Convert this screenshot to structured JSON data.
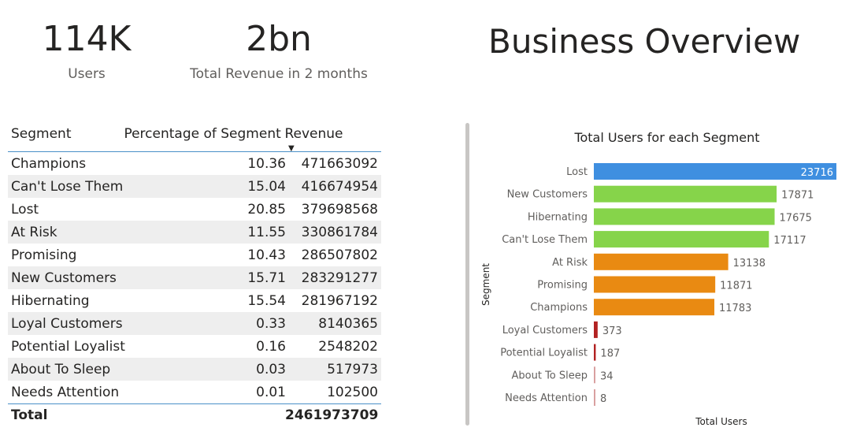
{
  "kpis": {
    "users": {
      "value": "114K",
      "label": "Users"
    },
    "revenue": {
      "value": "2bn",
      "label": "Total Revenue in 2 months"
    }
  },
  "title": "Business Overview",
  "table": {
    "headers": [
      "Segment",
      "Percentage of Segment",
      "Revenue"
    ],
    "sort_icon": "sort-descending-icon",
    "rows": [
      {
        "segment": "Champions",
        "pct": "10.36",
        "revenue": "471663092"
      },
      {
        "segment": "Can't Lose Them",
        "pct": "15.04",
        "revenue": "416674954"
      },
      {
        "segment": "Lost",
        "pct": "20.85",
        "revenue": "379698568"
      },
      {
        "segment": "At Risk",
        "pct": "11.55",
        "revenue": "330861784"
      },
      {
        "segment": "Promising",
        "pct": "10.43",
        "revenue": "286507802"
      },
      {
        "segment": "New Customers",
        "pct": "15.71",
        "revenue": "283291277"
      },
      {
        "segment": "Hibernating",
        "pct": "15.54",
        "revenue": "281967192"
      },
      {
        "segment": "Loyal Customers",
        "pct": "0.33",
        "revenue": "8140365"
      },
      {
        "segment": "Potential Loyalist",
        "pct": "0.16",
        "revenue": "2548202"
      },
      {
        "segment": "About To Sleep",
        "pct": "0.03",
        "revenue": "517973"
      },
      {
        "segment": "Needs Attention",
        "pct": "0.01",
        "revenue": "102500"
      }
    ],
    "total": {
      "label": "Total",
      "revenue": "2461973709"
    }
  },
  "chart_data": {
    "type": "bar",
    "orientation": "horizontal",
    "title": "Total Users for each Segment",
    "xlabel": "Total Users",
    "ylabel": "Segment",
    "categories": [
      "Lost",
      "New Customers",
      "Hibernating",
      "Can't Lose Them",
      "At Risk",
      "Promising",
      "Champions",
      "Loyal Customers",
      "Potential Loyalist",
      "About To Sleep",
      "Needs Attention"
    ],
    "values": [
      23716,
      17871,
      17675,
      17117,
      13138,
      11871,
      11783,
      373,
      187,
      34,
      8
    ],
    "colors": [
      "#3f8fe0",
      "#86d44a",
      "#86d44a",
      "#86d44a",
      "#e98a12",
      "#e98a12",
      "#e98a12",
      "#b22222",
      "#b22222",
      "#d9a0a0",
      "#d9a0a0"
    ],
    "xlim": [
      0,
      23716
    ],
    "grid": false,
    "legend": "none"
  }
}
